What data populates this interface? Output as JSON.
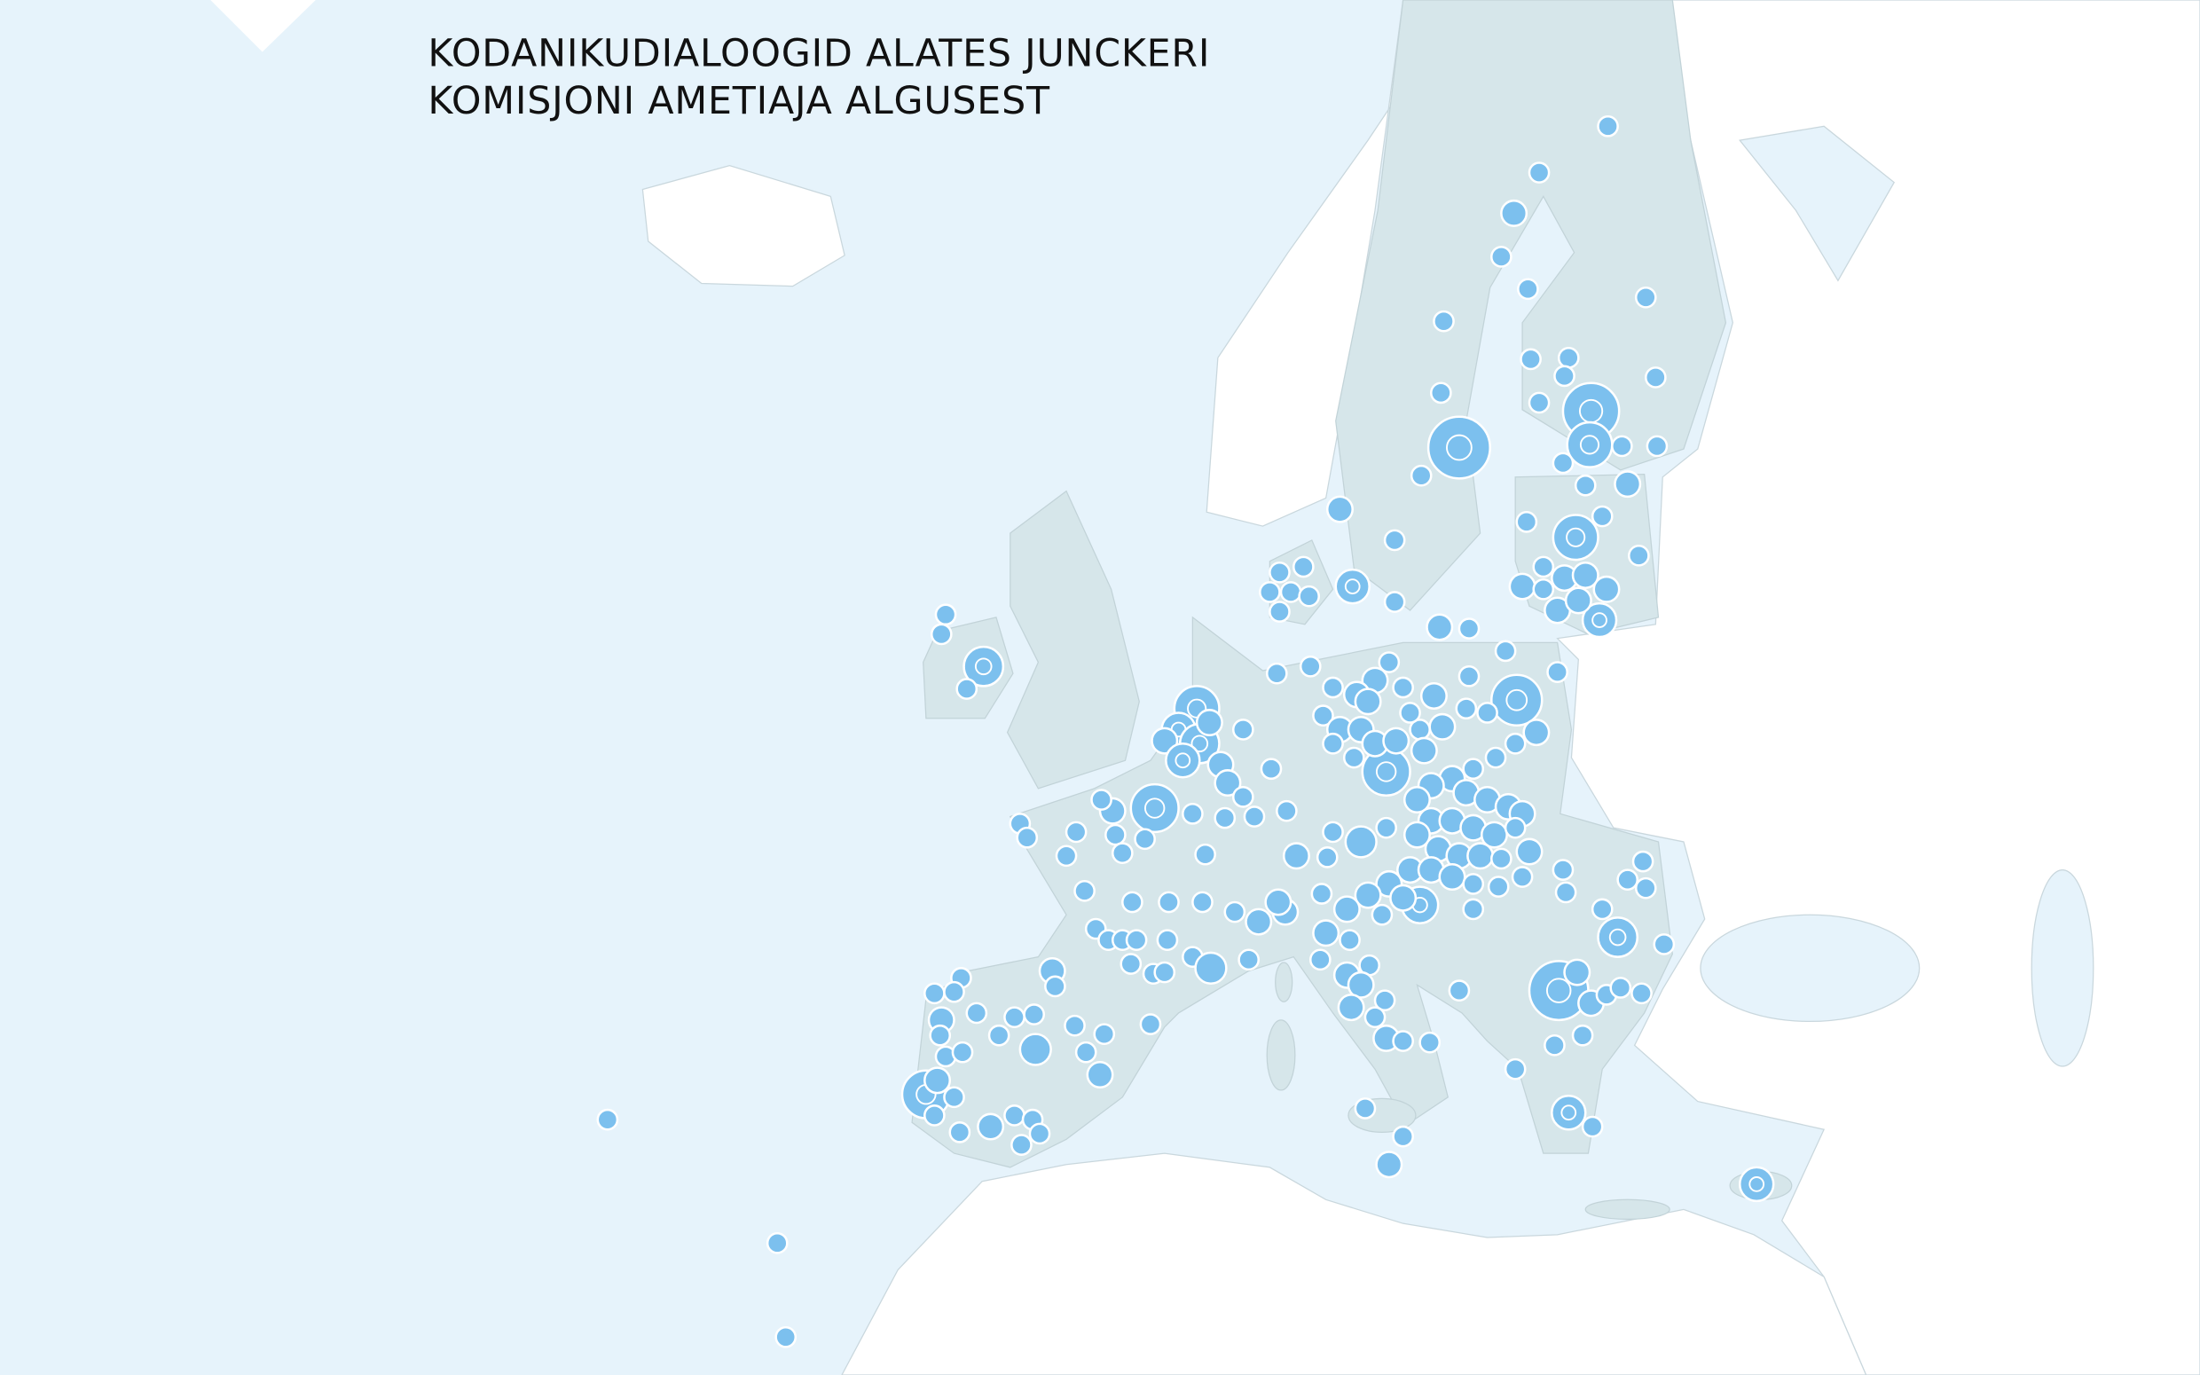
{
  "title": {
    "lines": [
      "KODANIKUDIALOOGID ALATES JUNCKERI",
      "KOMISJONI AMETIAJA ALGUSEST"
    ]
  }
}
